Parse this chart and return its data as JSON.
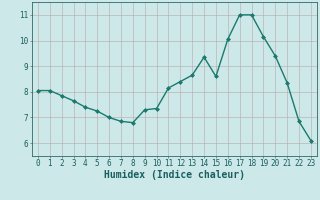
{
  "x": [
    0,
    1,
    2,
    3,
    4,
    5,
    6,
    7,
    8,
    9,
    10,
    11,
    12,
    13,
    14,
    15,
    16,
    17,
    18,
    19,
    20,
    21,
    22,
    23
  ],
  "y": [
    8.05,
    8.05,
    7.85,
    7.65,
    7.4,
    7.25,
    7.0,
    6.85,
    6.8,
    7.3,
    7.35,
    8.15,
    8.4,
    8.65,
    9.35,
    8.6,
    10.05,
    11.0,
    11.0,
    10.15,
    9.4,
    8.35,
    6.85,
    6.1
  ],
  "line_color": "#1a7a6e",
  "marker": "D",
  "marker_size": 2.0,
  "linewidth": 1.0,
  "xlabel": "Humidex (Indice chaleur)",
  "xlim": [
    -0.5,
    23.5
  ],
  "ylim": [
    5.5,
    11.5
  ],
  "yticks": [
    6,
    7,
    8,
    9,
    10,
    11
  ],
  "xticks": [
    0,
    1,
    2,
    3,
    4,
    5,
    6,
    7,
    8,
    9,
    10,
    11,
    12,
    13,
    14,
    15,
    16,
    17,
    18,
    19,
    20,
    21,
    22,
    23
  ],
  "background_color": "#cde8e8",
  "grid_color": "#b8a8a8",
  "axis_color": "#336666",
  "tick_label_color": "#1a5f5f",
  "xlabel_color": "#1a5f5f",
  "xlabel_fontsize": 7,
  "tick_fontsize": 5.5
}
